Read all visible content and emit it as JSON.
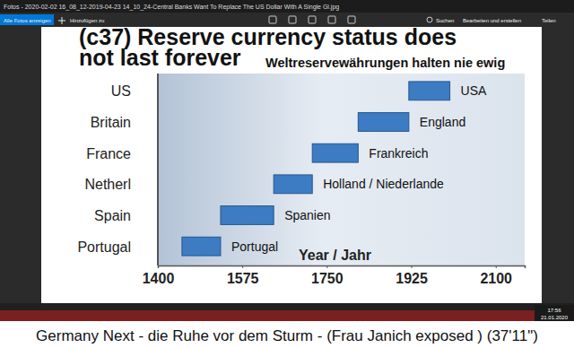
{
  "window": {
    "title": "Fotos - 2020-02-02 16_08_12-2019-04-23 14_10_24-Central Banks Want To Replace The US Dollar With A Single Gl.jpg",
    "toolbar": [
      "Alle Fotos anzeigen",
      "Hinzufügen zu",
      "Suchen",
      "Bearbeiten und erstellen",
      "Teilen"
    ],
    "clock": {
      "time": "17:56",
      "date": "21.01.2020"
    }
  },
  "chart_data": {
    "type": "range_bar",
    "orientation": "horizontal",
    "title": "(c37) Reserve currency status does not last forever",
    "subtitle": "Weltreservewährungen halten nie ewig",
    "x_label": "Year / Jahr",
    "categories": [
      "US",
      "Britain",
      "France",
      "Netherl",
      "Spain",
      "Portugal"
    ],
    "starts": [
      1920,
      1815,
      1720,
      1640,
      1530,
      1450
    ],
    "ends": [
      2005,
      1920,
      1815,
      1720,
      1640,
      1530
    ],
    "annotations": [
      "USA",
      "England",
      "Frankreich",
      "Holland / Niederlande",
      "Spanien",
      "Portugal"
    ],
    "color": "#3d7cc2",
    "xlim": [
      1400,
      2160
    ],
    "xticks": [
      1400,
      1575,
      1750,
      1925,
      2100
    ],
    "grid": false
  },
  "caption": "Germany Next - die Ruhe vor dem Sturm - (Frau Janich exposed ) (37'11\")"
}
